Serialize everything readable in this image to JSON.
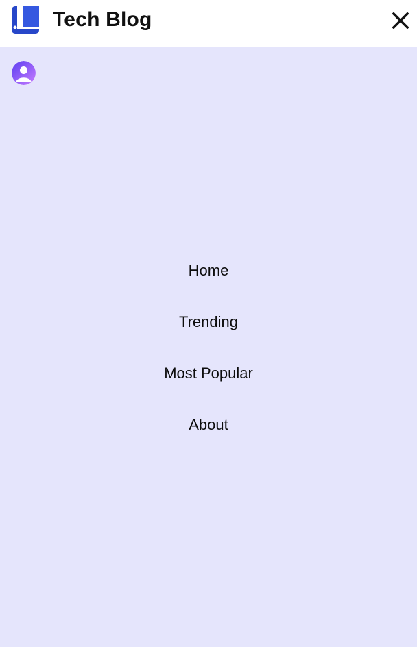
{
  "header": {
    "brand_title": "Tech Blog",
    "logo_icon": "blog-logo-icon",
    "close_icon": "close-icon"
  },
  "user": {
    "avatar_icon": "user-avatar-icon"
  },
  "nav": {
    "items": [
      {
        "label": "Home"
      },
      {
        "label": "Trending"
      },
      {
        "label": "Most Popular"
      },
      {
        "label": "About"
      }
    ]
  },
  "colors": {
    "menu_background": "#e5e5fc",
    "header_background": "#ffffff",
    "logo_blue": "#2b4fd6",
    "avatar_gradient_start": "#7c3aed",
    "avatar_gradient_end": "#c084fc"
  }
}
